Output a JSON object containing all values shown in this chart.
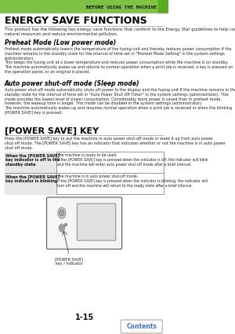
{
  "header_text": "BEFORE USING THE MACHINE",
  "header_bg": "#7dc242",
  "header_text_color": "#000000",
  "page_bg": "#ffffff",
  "title1": "ENERGY SAVE FUNCTIONS",
  "body1": "This product has the following two energy save functions that conform to the Energy Star guidelines to help conserve\nnatural resources and reduce environmental pollution.",
  "sub1": "Preheat Mode (Low power mode)",
  "body2": "Preheat mode automatically lowers the temperature of the fusing unit and thereby reduces power consumption if the\nmachine remains in the standby state for the interval of time set in \"Preheat Mode Setting\" in the system settings\n(administrator).\nThis keeps the fusing unit at a lower temperature and reduces power consumption while the machine is on standby.\nThe machine automatically wakes up and returns to normal operation when a print job is received, a key is pressed on\nthe operation panel, or an original is placed.",
  "sub2": "Auto power shut-off mode (Sleep mode)",
  "body3": "Auto power shut-off mode automatically shuts off power to the display and the fusing unit if the machine remains in the\nstandby state for the interval of time set in \"Auto Power Shut-Off Timer\" in the system settings (administrator). This\nmode provides the lowest level of power consumption. Considerably more power is saved than in preheat mode,\nhowever, the wakeup time is longer. This mode can be disabled in the system settings (administrator).\nThe machine automatically wakes up and resumes normal operation when a print job is received or when the blinking\n[POWER SAVE] key is pressed.",
  "title2": "[POWER SAVE] KEY",
  "body4": "Press the [POWER SAVE] key to put the machine in auto power shut-off mode or wake it up from auto power\nshut-off mode. The [POWER SAVE] key has an indicator that indicates whether or not the machine is in auto power\nshut-off mode.",
  "table_row1_left": "When the [POWER SAVE]\nkey indicator is off in the\nstandby state",
  "table_row1_right": "The machine is ready to be used.\nIf the [POWER SAVE] key is pressed when the indicator is off, the indicator will blink\nand the machine will enter auto power shut-off mode after a brief interval.",
  "table_row2_left": "When the [POWER SAVE]\nkey indicator is blinking",
  "table_row2_right": "The machine is in auto power shut-off mode.\nIf the [POWER SAVE] key is pressed when the indicator is blinking, the indicator will\nturn off and the machine will return to the ready state after a brief interval.",
  "page_num": "1-15",
  "contents_text": "Contents",
  "contents_color": "#4472c4",
  "table_border": "#888888",
  "table_left_bg": "#e8e8e8",
  "separator_color": "#cccccc",
  "title_color": "#000000",
  "sub_color": "#000000"
}
